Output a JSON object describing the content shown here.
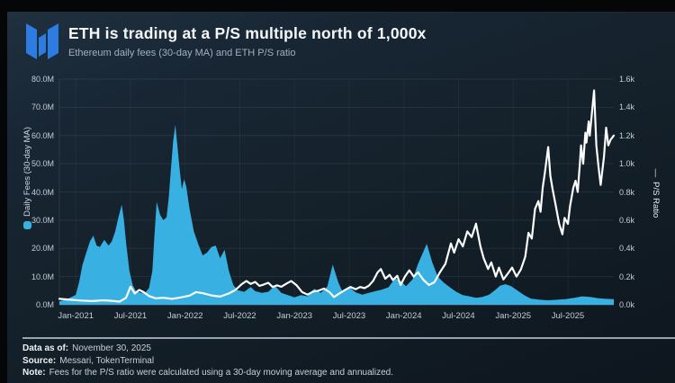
{
  "header": {
    "title": "ETH is trading at a P/S multiple north of 1,000x",
    "subtitle": "Ethereum daily fees (30-day MA) and ETH P/S ratio",
    "logo": "messari-logo"
  },
  "colors": {
    "brand_blue": "#2c7ce2",
    "fees_area": "#38b0e2",
    "ps_line": "#fbfdfe",
    "card_bg_top": "#20303f",
    "card_bg_bottom": "#0e161e",
    "grid": "rgba(170,200,225,0.10)",
    "tick_text": "#c3cdd6"
  },
  "footer": {
    "data_as_of": {
      "label": "Data as of:",
      "value": "November 30, 2025"
    },
    "source": {
      "label": "Source:",
      "value": "Messari, TokenTerminal"
    },
    "note": {
      "label": "Note:",
      "value": "Fees for the P/S ratio were calculated using a 30-day moving average and annualized."
    }
  },
  "chart_data": {
    "type": "area+line-dual-axis",
    "x_range": [
      2020.85,
      2025.92
    ],
    "x_ticks": [
      {
        "label": "Jan-2021",
        "t": 2021.0
      },
      {
        "label": "Jul-2021",
        "t": 2021.5
      },
      {
        "label": "Jan-2022",
        "t": 2022.0
      },
      {
        "label": "Jul-2022",
        "t": 2022.5
      },
      {
        "label": "Jan-2023",
        "t": 2023.0
      },
      {
        "label": "Jul-2023",
        "t": 2023.5
      },
      {
        "label": "Jan-2024",
        "t": 2024.0
      },
      {
        "label": "Jul-2024",
        "t": 2024.5
      },
      {
        "label": "Jan-2025",
        "t": 2025.0
      },
      {
        "label": "Jul-2025",
        "t": 2025.5
      }
    ],
    "left_axis": {
      "title": "Daily Fees (30-day MA)",
      "legend_marker": "dot",
      "max": 80,
      "tick_values": [
        0,
        10,
        20,
        30,
        40,
        50,
        60,
        70,
        80
      ],
      "tick_labels": [
        "0.0M",
        "10.0M",
        "20.0M",
        "30.0M",
        "40.0M",
        "50.0M",
        "60.0M",
        "70.0M",
        "80.0M"
      ]
    },
    "right_axis": {
      "title": "P/S Ratio",
      "legend_marker": "—",
      "max": 1.6,
      "tick_values": [
        0,
        0.2,
        0.4,
        0.6,
        0.8,
        1.0,
        1.2,
        1.4,
        1.6
      ],
      "tick_labels": [
        "0.0k",
        "0.2k",
        "0.4k",
        "0.6k",
        "0.8k",
        "1.0k",
        "1.2k",
        "1.4k",
        "1.6k"
      ]
    },
    "series": [
      {
        "name": "Daily Fees (30-day MA)",
        "kind": "area",
        "axis": "left",
        "color": "#38b0e2",
        "unit": "$M/day",
        "points": [
          [
            2020.85,
            1.2
          ],
          [
            2020.92,
            2
          ],
          [
            2021.0,
            3.5
          ],
          [
            2021.03,
            8
          ],
          [
            2021.06,
            14
          ],
          [
            2021.1,
            19
          ],
          [
            2021.13,
            22.5
          ],
          [
            2021.16,
            24.5
          ],
          [
            2021.19,
            21
          ],
          [
            2021.22,
            20.5
          ],
          [
            2021.26,
            23
          ],
          [
            2021.3,
            21
          ],
          [
            2021.33,
            22.5
          ],
          [
            2021.36,
            26
          ],
          [
            2021.39,
            31
          ],
          [
            2021.42,
            35.5
          ],
          [
            2021.44,
            30
          ],
          [
            2021.46,
            22
          ],
          [
            2021.49,
            12
          ],
          [
            2021.52,
            7
          ],
          [
            2021.55,
            4.8
          ],
          [
            2021.6,
            4.2
          ],
          [
            2021.64,
            4.5
          ],
          [
            2021.67,
            6
          ],
          [
            2021.7,
            12
          ],
          [
            2021.72,
            25
          ],
          [
            2021.74,
            36.5
          ],
          [
            2021.77,
            32
          ],
          [
            2021.8,
            30
          ],
          [
            2021.83,
            31
          ],
          [
            2021.85,
            38
          ],
          [
            2021.87,
            48
          ],
          [
            2021.89,
            58
          ],
          [
            2021.91,
            63.8
          ],
          [
            2021.93,
            56
          ],
          [
            2021.95,
            48
          ],
          [
            2021.97,
            41
          ],
          [
            2021.99,
            44.5
          ],
          [
            2022.01,
            42
          ],
          [
            2022.04,
            34
          ],
          [
            2022.08,
            26
          ],
          [
            2022.12,
            21.5
          ],
          [
            2022.16,
            17.5
          ],
          [
            2022.2,
            18.5
          ],
          [
            2022.24,
            20.5
          ],
          [
            2022.28,
            21
          ],
          [
            2022.32,
            16.5
          ],
          [
            2022.36,
            19.5
          ],
          [
            2022.4,
            12
          ],
          [
            2022.44,
            7
          ],
          [
            2022.48,
            5.2
          ],
          [
            2022.54,
            4.6
          ],
          [
            2022.6,
            6.3
          ],
          [
            2022.64,
            4.8
          ],
          [
            2022.7,
            4.2
          ],
          [
            2022.76,
            4.6
          ],
          [
            2022.82,
            6.8
          ],
          [
            2022.88,
            4.2
          ],
          [
            2022.94,
            3.4
          ],
          [
            2023.0,
            2.6
          ],
          [
            2023.06,
            3.4
          ],
          [
            2023.12,
            3.0
          ],
          [
            2023.18,
            5.7
          ],
          [
            2023.24,
            4.2
          ],
          [
            2023.3,
            6.5
          ],
          [
            2023.35,
            14.2
          ],
          [
            2023.4,
            8
          ],
          [
            2023.44,
            4.5
          ],
          [
            2023.5,
            6.2
          ],
          [
            2023.56,
            4.4
          ],
          [
            2023.62,
            3.6
          ],
          [
            2023.68,
            4.2
          ],
          [
            2023.74,
            4.8
          ],
          [
            2023.8,
            5.4
          ],
          [
            2023.86,
            6.2
          ],
          [
            2023.92,
            9.4
          ],
          [
            2023.97,
            8.4
          ],
          [
            2024.02,
            6.6
          ],
          [
            2024.08,
            9
          ],
          [
            2024.13,
            14.5
          ],
          [
            2024.18,
            19
          ],
          [
            2024.21,
            21.6
          ],
          [
            2024.26,
            15
          ],
          [
            2024.31,
            10
          ],
          [
            2024.36,
            8
          ],
          [
            2024.42,
            6.2
          ],
          [
            2024.48,
            4.6
          ],
          [
            2024.54,
            3.4
          ],
          [
            2024.6,
            3.0
          ],
          [
            2024.66,
            2.5
          ],
          [
            2024.72,
            2.8
          ],
          [
            2024.78,
            3.6
          ],
          [
            2024.84,
            5.4
          ],
          [
            2024.88,
            6.8
          ],
          [
            2024.93,
            7.3
          ],
          [
            2024.98,
            6.6
          ],
          [
            2025.04,
            5.0
          ],
          [
            2025.1,
            3.4
          ],
          [
            2025.16,
            2.2
          ],
          [
            2025.24,
            1.8
          ],
          [
            2025.32,
            1.6
          ],
          [
            2025.4,
            1.8
          ],
          [
            2025.48,
            2.0
          ],
          [
            2025.56,
            2.5
          ],
          [
            2025.63,
            3.0
          ],
          [
            2025.7,
            2.8
          ],
          [
            2025.78,
            2.3
          ],
          [
            2025.85,
            2.1
          ],
          [
            2025.92,
            2.0
          ]
        ]
      },
      {
        "name": "P/S Ratio",
        "kind": "line",
        "axis": "right",
        "color": "#fbfdfe",
        "unit": "k (thousands)",
        "points": [
          [
            2020.85,
            0.042
          ],
          [
            2020.95,
            0.036
          ],
          [
            2021.05,
            0.03
          ],
          [
            2021.15,
            0.026
          ],
          [
            2021.25,
            0.032
          ],
          [
            2021.33,
            0.028
          ],
          [
            2021.4,
            0.022
          ],
          [
            2021.46,
            0.05
          ],
          [
            2021.5,
            0.128
          ],
          [
            2021.54,
            0.08
          ],
          [
            2021.58,
            0.105
          ],
          [
            2021.62,
            0.09
          ],
          [
            2021.67,
            0.062
          ],
          [
            2021.73,
            0.046
          ],
          [
            2021.8,
            0.05
          ],
          [
            2021.88,
            0.042
          ],
          [
            2021.96,
            0.052
          ],
          [
            2022.04,
            0.065
          ],
          [
            2022.1,
            0.09
          ],
          [
            2022.16,
            0.082
          ],
          [
            2022.24,
            0.066
          ],
          [
            2022.32,
            0.058
          ],
          [
            2022.4,
            0.08
          ],
          [
            2022.46,
            0.105
          ],
          [
            2022.52,
            0.148
          ],
          [
            2022.56,
            0.168
          ],
          [
            2022.6,
            0.148
          ],
          [
            2022.64,
            0.162
          ],
          [
            2022.68,
            0.134
          ],
          [
            2022.72,
            0.144
          ],
          [
            2022.76,
            0.156
          ],
          [
            2022.8,
            0.126
          ],
          [
            2022.84,
            0.138
          ],
          [
            2022.88,
            0.128
          ],
          [
            2022.93,
            0.152
          ],
          [
            2022.97,
            0.168
          ],
          [
            2023.02,
            0.138
          ],
          [
            2023.07,
            0.09
          ],
          [
            2023.12,
            0.072
          ],
          [
            2023.17,
            0.094
          ],
          [
            2023.22,
            0.1
          ],
          [
            2023.27,
            0.115
          ],
          [
            2023.32,
            0.09
          ],
          [
            2023.36,
            0.055
          ],
          [
            2023.41,
            0.08
          ],
          [
            2023.46,
            0.104
          ],
          [
            2023.51,
            0.126
          ],
          [
            2023.56,
            0.11
          ],
          [
            2023.6,
            0.126
          ],
          [
            2023.64,
            0.118
          ],
          [
            2023.68,
            0.135
          ],
          [
            2023.72,
            0.17
          ],
          [
            2023.76,
            0.23
          ],
          [
            2023.79,
            0.253
          ],
          [
            2023.83,
            0.185
          ],
          [
            2023.87,
            0.212
          ],
          [
            2023.9,
            0.175
          ],
          [
            2023.94,
            0.205
          ],
          [
            2023.97,
            0.14
          ],
          [
            2024.01,
            0.2
          ],
          [
            2024.05,
            0.245
          ],
          [
            2024.09,
            0.2
          ],
          [
            2024.13,
            0.23
          ],
          [
            2024.18,
            0.175
          ],
          [
            2024.23,
            0.14
          ],
          [
            2024.28,
            0.16
          ],
          [
            2024.33,
            0.23
          ],
          [
            2024.38,
            0.29
          ],
          [
            2024.43,
            0.435
          ],
          [
            2024.46,
            0.37
          ],
          [
            2024.5,
            0.465
          ],
          [
            2024.54,
            0.414
          ],
          [
            2024.58,
            0.52
          ],
          [
            2024.62,
            0.48
          ],
          [
            2024.66,
            0.575
          ],
          [
            2024.7,
            0.414
          ],
          [
            2024.73,
            0.33
          ],
          [
            2024.77,
            0.254
          ],
          [
            2024.8,
            0.3
          ],
          [
            2024.84,
            0.2
          ],
          [
            2024.87,
            0.264
          ],
          [
            2024.91,
            0.18
          ],
          [
            2024.95,
            0.22
          ],
          [
            2024.99,
            0.264
          ],
          [
            2025.03,
            0.2
          ],
          [
            2025.07,
            0.25
          ],
          [
            2025.11,
            0.34
          ],
          [
            2025.14,
            0.51
          ],
          [
            2025.17,
            0.47
          ],
          [
            2025.2,
            0.68
          ],
          [
            2025.23,
            0.735
          ],
          [
            2025.25,
            0.66
          ],
          [
            2025.27,
            0.83
          ],
          [
            2025.29,
            0.94
          ],
          [
            2025.32,
            1.118
          ],
          [
            2025.34,
            0.915
          ],
          [
            2025.36,
            0.82
          ],
          [
            2025.39,
            0.7
          ],
          [
            2025.42,
            0.574
          ],
          [
            2025.45,
            0.5
          ],
          [
            2025.47,
            0.616
          ],
          [
            2025.5,
            0.574
          ],
          [
            2025.52,
            0.7
          ],
          [
            2025.55,
            0.83
          ],
          [
            2025.57,
            0.88
          ],
          [
            2025.59,
            0.8
          ],
          [
            2025.61,
            1.0
          ],
          [
            2025.62,
            1.13
          ],
          [
            2025.64,
            1.0
          ],
          [
            2025.66,
            1.22
          ],
          [
            2025.67,
            1.15
          ],
          [
            2025.69,
            1.3
          ],
          [
            2025.7,
            1.2
          ],
          [
            2025.74,
            1.52
          ],
          [
            2025.76,
            1.13
          ],
          [
            2025.78,
            0.98
          ],
          [
            2025.8,
            0.85
          ],
          [
            2025.83,
            1.05
          ],
          [
            2025.85,
            1.256
          ],
          [
            2025.87,
            1.13
          ],
          [
            2025.89,
            1.17
          ],
          [
            2025.92,
            1.2
          ]
        ]
      }
    ]
  }
}
